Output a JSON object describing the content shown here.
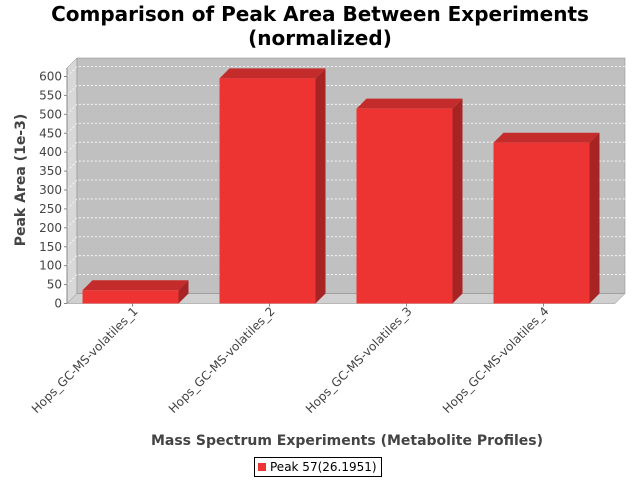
{
  "chart_data": {
    "type": "bar",
    "title": "Comparison of Peak Area Between Experiments (normalized)",
    "title_lines": [
      "Comparison of Peak Area Between Experiments",
      "(normalized)"
    ],
    "xlabel": "Mass Spectrum Experiments (Metabolite Profiles)",
    "ylabel": "Peak Area (1e-3)",
    "categories": [
      "Hops_GC-MS-volatiles_1",
      "Hops_GC-MS-volatiles_2",
      "Hops_GC-MS-volatiles_3",
      "Hops_GC-MS-volatiles_4"
    ],
    "series": [
      {
        "name": "Peak 57(26.1951)",
        "values": [
          35,
          595,
          515,
          425
        ]
      }
    ],
    "ylim": [
      0,
      620
    ],
    "yticks": [
      0,
      50,
      100,
      150,
      200,
      250,
      300,
      350,
      400,
      450,
      500,
      550,
      600
    ],
    "grid": true,
    "legend_position": "bottom",
    "three_d": true,
    "colors": {
      "bar_front": "#ee3333",
      "bar_top": "#c42c2c",
      "bar_side": "#a82424",
      "plot_bg": "#c0c0c0",
      "wall": "#d8d8d8",
      "floor": "#d0d0d0",
      "grid": "#ffffff"
    }
  }
}
